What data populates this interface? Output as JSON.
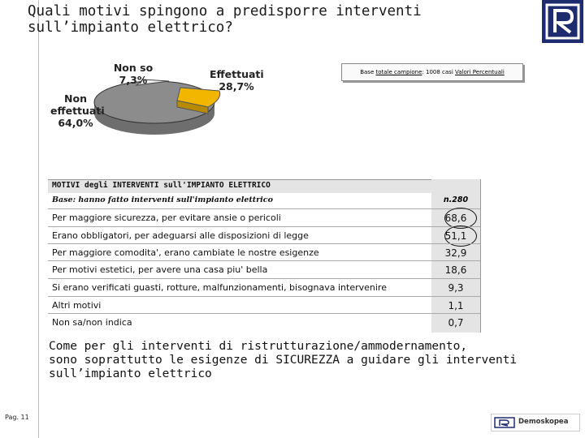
{
  "title": {
    "line1": "Quali motivi spingono a predisporre interventi",
    "line2": "sull’impianto elettrico?"
  },
  "pie": {
    "slices": [
      {
        "label_line1": "Effettuati",
        "label_line2": "28,7%",
        "value": 28.7,
        "color": "#f2b600"
      },
      {
        "label_line1": "Non",
        "label_line2": "effettuati",
        "label_line3": "64,0%",
        "value": 64.0,
        "color": "#8c8c8c"
      },
      {
        "label_line1": "Non so",
        "label_line2": "7,3%",
        "value": 7.3,
        "color": "#f2f2f2"
      }
    ]
  },
  "base_note": {
    "prefix": "Base",
    "u1": "totale campione",
    "mid": ": 1008 casi ",
    "u2": "Valori Percentuali"
  },
  "table": {
    "header": "MOTIVI degli INTERVENTI sull'IMPIANTO ELETTRICO",
    "base_label": "Base: hanno fatto interventi sull'impianto elettrico",
    "base_n": "n.280",
    "rows": [
      {
        "label": "Per maggiore sicurezza, per evitare ansie o pericoli",
        "value": "68,6",
        "circled": true
      },
      {
        "label": "Erano obbligatori, per adeguarsi alle disposizioni di legge",
        "value": "51,1",
        "circled": true
      },
      {
        "label": "Per maggiore comodita', erano cambiate le nostre esigenze",
        "value": "32,9"
      },
      {
        "label": "Per motivi estetici, per avere una casa piu' bella",
        "value": "18,6"
      },
      {
        "label": "Si erano verificati guasti, rotture, malfunzionamenti, bisognava intervenire",
        "value": "9,3"
      },
      {
        "label": "Altri motivi",
        "value": "1,1"
      },
      {
        "label": "Non sa/non indica",
        "value": "0,7"
      }
    ]
  },
  "conclusion": {
    "line1": "Come per gli interventi di ristrutturazione/ammodernamento,",
    "line2": "sono soprattutto le esigenze di SICUREZZA a guidare gli interventi",
    "line3": "sull’impianto elettrico"
  },
  "page_number": "Pag. 11",
  "footer_brand": "Demoskopea"
}
